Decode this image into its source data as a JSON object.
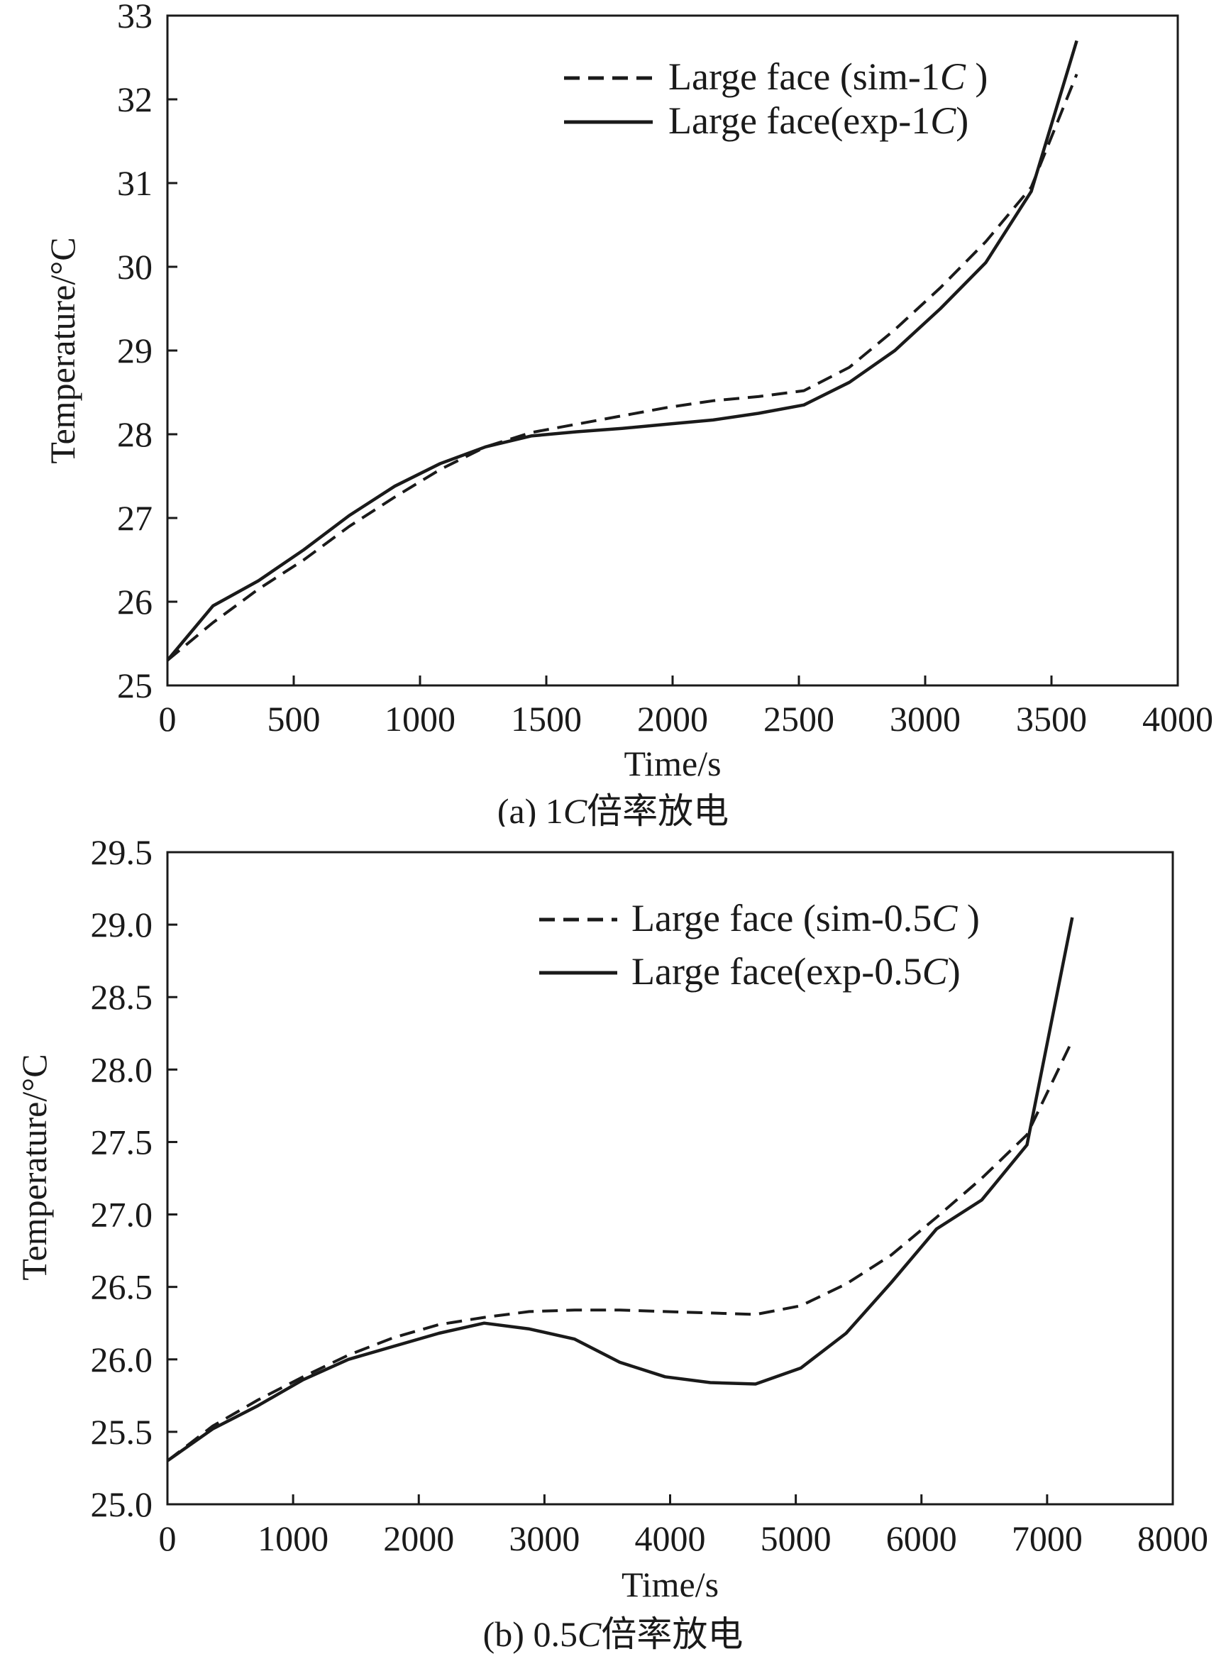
{
  "chart_data": [
    {
      "type": "line",
      "caption": {
        "prefix": "(a) 1",
        "italic": "C",
        "suffix": "倍率放电"
      },
      "xlabel": "Time/s",
      "ylabel": "Temperature/°C",
      "xlim": [
        0,
        4000
      ],
      "ylim": [
        25,
        33
      ],
      "xticks": [
        "0",
        "500",
        "1000",
        "1500",
        "2000",
        "2500",
        "3000",
        "3500",
        "4000"
      ],
      "yticks": [
        "25",
        "26",
        "27",
        "28",
        "29",
        "30",
        "31",
        "32",
        "33"
      ],
      "grid": false,
      "legend_position": "top-right",
      "series": [
        {
          "name": "Large face (sim-1C )",
          "legend_parts": {
            "prefix": "Large face (sim-1",
            "italic": "C",
            "suffix": " )"
          },
          "style": "dashed",
          "x": [
            0,
            180,
            360,
            540,
            720,
            900,
            1080,
            1260,
            1440,
            1620,
            1800,
            1980,
            2160,
            2340,
            2520,
            2700,
            2880,
            3060,
            3240,
            3420,
            3600
          ],
          "y": [
            25.3,
            25.75,
            26.15,
            26.5,
            26.9,
            27.25,
            27.58,
            27.85,
            28.02,
            28.12,
            28.22,
            28.32,
            28.4,
            28.45,
            28.52,
            28.8,
            29.25,
            29.75,
            30.3,
            30.95,
            32.3
          ]
        },
        {
          "name": "Large face(exp-1C)",
          "legend_parts": {
            "prefix": "Large face(exp-1",
            "italic": "C",
            "suffix": ")"
          },
          "style": "solid",
          "x": [
            0,
            180,
            360,
            540,
            720,
            900,
            1080,
            1260,
            1440,
            1620,
            1800,
            1980,
            2160,
            2340,
            2520,
            2700,
            2880,
            3060,
            3240,
            3420,
            3600
          ],
          "y": [
            25.3,
            25.95,
            26.25,
            26.62,
            27.03,
            27.38,
            27.65,
            27.85,
            27.98,
            28.03,
            28.07,
            28.12,
            28.17,
            28.25,
            28.35,
            28.62,
            29.0,
            29.5,
            30.05,
            30.9,
            32.7
          ]
        }
      ]
    },
    {
      "type": "line",
      "caption": {
        "prefix": "(b) 0.5",
        "italic": "C",
        "suffix": "倍率放电"
      },
      "xlabel": "Time/s",
      "ylabel": "Temperature/°C",
      "xlim": [
        0,
        8000
      ],
      "ylim": [
        25.0,
        29.5
      ],
      "xticks": [
        "0",
        "1000",
        "2000",
        "3000",
        "4000",
        "5000",
        "6000",
        "7000",
        "8000"
      ],
      "yticks": [
        "25.0",
        "25.5",
        "26.0",
        "26.5",
        "27.0",
        "27.5",
        "28.0",
        "28.5",
        "29.0",
        "29.5"
      ],
      "grid": false,
      "legend_position": "top-right",
      "series": [
        {
          "name": "Large face (sim-0.5C )",
          "legend_parts": {
            "prefix": "Large face (sim-0.5",
            "italic": "C",
            "suffix": " )"
          },
          "style": "dashed",
          "x": [
            0,
            360,
            720,
            1080,
            1440,
            1800,
            2160,
            2520,
            2880,
            3240,
            3600,
            3960,
            4320,
            4680,
            5040,
            5400,
            5760,
            6120,
            6480,
            6840,
            7200
          ],
          "y": [
            25.3,
            25.54,
            25.72,
            25.88,
            26.03,
            26.15,
            26.24,
            26.29,
            26.33,
            26.34,
            26.34,
            26.33,
            26.32,
            26.31,
            26.37,
            26.52,
            26.72,
            26.98,
            27.25,
            27.55,
            28.2
          ]
        },
        {
          "name": "Large face(exp-0.5C)",
          "legend_parts": {
            "prefix": "Large face(exp-0.5",
            "italic": "C",
            "suffix": ")"
          },
          "style": "solid",
          "x": [
            0,
            360,
            720,
            1080,
            1440,
            1800,
            2160,
            2520,
            2880,
            3240,
            3600,
            3960,
            4320,
            4680,
            5040,
            5400,
            5760,
            6120,
            6480,
            6840,
            7200
          ],
          "y": [
            25.3,
            25.52,
            25.68,
            25.86,
            26.0,
            26.09,
            26.18,
            26.25,
            26.21,
            26.14,
            25.98,
            25.88,
            25.84,
            25.83,
            25.94,
            26.18,
            26.53,
            26.9,
            27.1,
            27.48,
            29.05
          ]
        }
      ]
    }
  ]
}
